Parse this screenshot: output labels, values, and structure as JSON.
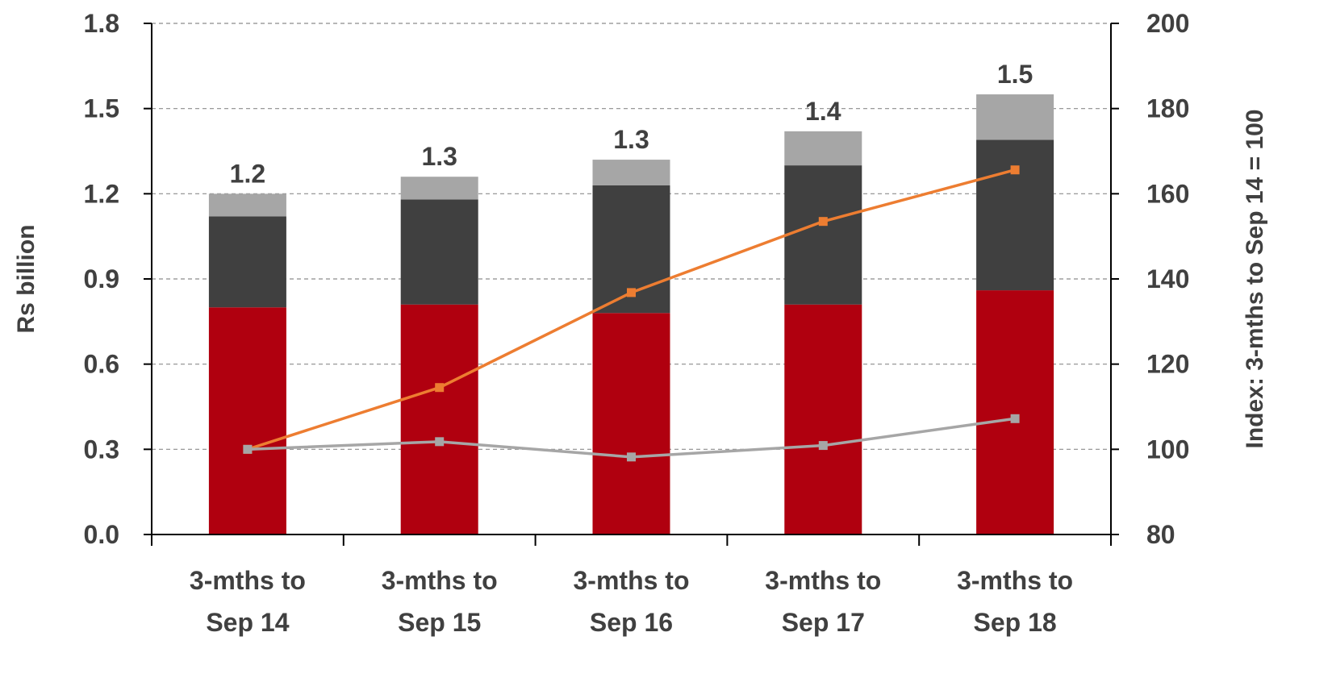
{
  "chart_data": {
    "type": "bar",
    "stacked": true,
    "categories": [
      [
        "3-mths to",
        "Sep 14"
      ],
      [
        "3-mths to",
        "Sep 15"
      ],
      [
        "3-mths to",
        "Sep 16"
      ],
      [
        "3-mths to",
        "Sep 17"
      ],
      [
        "3-mths to",
        "Sep 18"
      ]
    ],
    "series": [
      {
        "values": [
          0.8,
          0.81,
          0.78,
          0.81,
          0.86
        ],
        "color": "#b0000f"
      },
      {
        "values": [
          0.32,
          0.37,
          0.45,
          0.49,
          0.53
        ],
        "color": "#404040"
      },
      {
        "values": [
          0.08,
          0.08,
          0.09,
          0.12,
          0.16
        ],
        "color": "#a6a6a6"
      }
    ],
    "totals": [
      "1.2",
      "1.3",
      "1.3",
      "1.4",
      "1.5"
    ],
    "lines": [
      {
        "axis": "right",
        "values": [
          100,
          114.5,
          136.8,
          153.5,
          165.6
        ],
        "color": "#ed7d31"
      },
      {
        "axis": "right",
        "values": [
          100,
          101.8,
          98.2,
          100.9,
          107.2
        ],
        "color": "#a6a6a6"
      }
    ],
    "ylabel": "Rs billion",
    "ylim": [
      0,
      1.8
    ],
    "yticks": [
      "0.0",
      "0.3",
      "0.6",
      "0.9",
      "1.2",
      "1.5",
      "1.8"
    ],
    "y2label": "Index: 3-mths to Sep 14 = 100",
    "y2lim": [
      80,
      200
    ],
    "y2ticks": [
      "80",
      "100",
      "120",
      "140",
      "160",
      "180",
      "200"
    ],
    "grid": "horizontal dashed",
    "legend": "none"
  }
}
